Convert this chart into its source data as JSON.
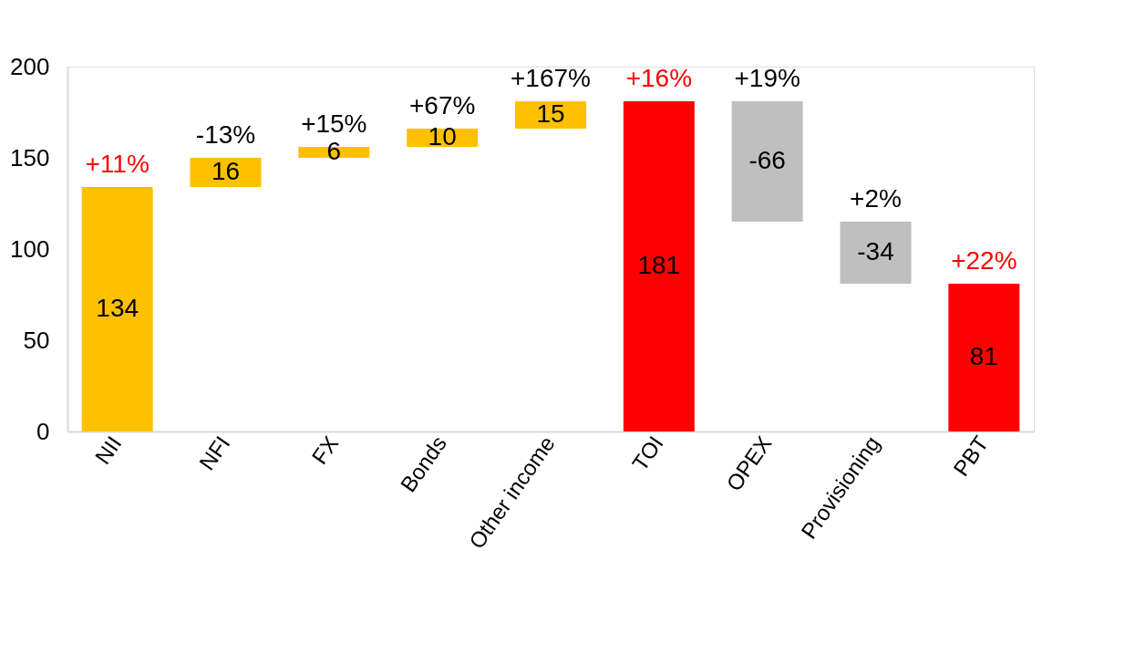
{
  "chart_data": {
    "type": "bar",
    "categories": [
      "NII",
      "NFI",
      "FX",
      "Bonds",
      "Other income",
      "TOI",
      "OPEX",
      "Provisioning",
      "PBT"
    ],
    "values": [
      134,
      16,
      6,
      10,
      15,
      181,
      -66,
      -34,
      81
    ],
    "base": [
      0,
      134,
      150,
      156,
      166,
      0,
      181,
      115,
      0
    ],
    "colors": [
      "#ffc000",
      "#ffc000",
      "#ffc000",
      "#ffc000",
      "#ffc000",
      "#ff0000",
      "#bfbfbf",
      "#bfbfbf",
      "#ff0000"
    ],
    "data_labels": true,
    "ylim": [
      0,
      200
    ],
    "yticks": [
      0,
      50,
      100,
      150,
      200
    ],
    "grid": false,
    "annotations": [
      {
        "text": "+11%",
        "x": "NII",
        "y": 134
      },
      {
        "text": "-13%",
        "x": "NFI",
        "y": 150
      },
      {
        "text": "+15%",
        "x": "FX",
        "y": 156
      },
      {
        "text": "+67%",
        "x": "Bonds",
        "y": 166
      },
      {
        "text": "+167%",
        "x": "Other income",
        "y": 181
      },
      {
        "text": "+16%",
        "x": "TOI",
        "y": 181
      },
      {
        "text": "+19%",
        "x": "OPEX",
        "y": 181
      },
      {
        "text": "+2%",
        "x": "Provisioning",
        "y": 115
      },
      {
        "text": "+22%",
        "x": "PBT",
        "y": 81
      }
    ]
  }
}
